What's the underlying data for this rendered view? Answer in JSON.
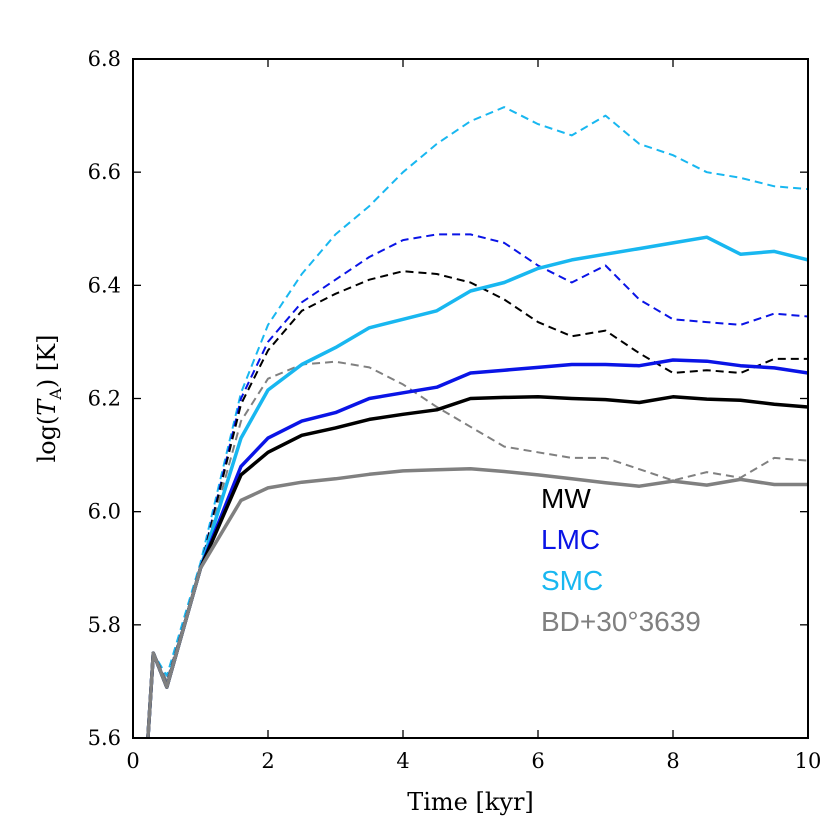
{
  "chart_data": {
    "type": "line",
    "xlabel": "Time [kyr]",
    "ylabel": "log(T_A) [K]",
    "ylabel_parts": {
      "pre": "log(",
      "var": "T",
      "sub": "A",
      "post": ") [K]"
    },
    "xlim": [
      0,
      10
    ],
    "ylim": [
      5.6,
      6.8
    ],
    "xticks": [
      0,
      2,
      4,
      6,
      8,
      10
    ],
    "yticks": [
      5.6,
      5.8,
      6.0,
      6.2,
      6.4,
      6.6,
      6.8
    ],
    "xtick_labels": [
      "0",
      "2",
      "4",
      "6",
      "8",
      "10"
    ],
    "ytick_labels": [
      "5.6",
      "5.8",
      "6.0",
      "6.2",
      "6.4",
      "6.6",
      "6.8"
    ],
    "grid": false,
    "legend": {
      "placement": "lower-right",
      "entries": [
        {
          "label": "MW",
          "color": "#000000"
        },
        {
          "label": "LMC",
          "color": "#0a14e6"
        },
        {
          "label": "SMC",
          "color": "#18b7f0"
        },
        {
          "label": "BD+30°3639",
          "color": "#808080"
        }
      ]
    },
    "series": [
      {
        "name": "SMC dashed",
        "color": "#18b7f0",
        "style": "dashed",
        "x": [
          0.2,
          0.3,
          0.5,
          1.0,
          1.6,
          2.0,
          2.5,
          3.0,
          3.5,
          4.0,
          4.5,
          5.0,
          5.5,
          6.0,
          6.5,
          7.0,
          7.5,
          8.0,
          8.5,
          9.0,
          9.5,
          10.0
        ],
        "y": [
          5.56,
          5.75,
          5.71,
          5.91,
          6.21,
          6.33,
          6.42,
          6.49,
          6.54,
          6.6,
          6.65,
          6.69,
          6.715,
          6.685,
          6.665,
          6.7,
          6.65,
          6.63,
          6.6,
          6.59,
          6.575,
          6.57
        ]
      },
      {
        "name": "LMC dashed",
        "color": "#0a14e6",
        "style": "dashed",
        "x": [
          0.2,
          0.3,
          0.5,
          1.0,
          1.6,
          2.0,
          2.5,
          3.0,
          3.5,
          4.0,
          4.5,
          5.0,
          5.5,
          6.0,
          6.5,
          7.0,
          7.5,
          8.0,
          8.5,
          9.0,
          9.5,
          10.0
        ],
        "y": [
          5.56,
          5.75,
          5.7,
          5.9,
          6.2,
          6.3,
          6.37,
          6.41,
          6.45,
          6.48,
          6.49,
          6.49,
          6.475,
          6.435,
          6.405,
          6.435,
          6.375,
          6.34,
          6.335,
          6.33,
          6.35,
          6.345
        ]
      },
      {
        "name": "MW dashed",
        "color": "#000000",
        "style": "dashed",
        "x": [
          0.2,
          0.3,
          0.5,
          1.0,
          1.6,
          2.0,
          2.5,
          3.0,
          3.5,
          4.0,
          4.5,
          5.0,
          5.5,
          6.0,
          6.5,
          7.0,
          7.5,
          8.0,
          8.5,
          9.0,
          9.5,
          10.0
        ],
        "y": [
          5.56,
          5.75,
          5.7,
          5.9,
          6.19,
          6.285,
          6.355,
          6.385,
          6.41,
          6.425,
          6.42,
          6.405,
          6.375,
          6.335,
          6.31,
          6.32,
          6.28,
          6.245,
          6.25,
          6.245,
          6.27,
          6.27
        ]
      },
      {
        "name": "BD+30°3639 dashed",
        "color": "#808080",
        "style": "dashed",
        "x": [
          0.2,
          0.3,
          0.5,
          1.0,
          1.6,
          2.0,
          2.5,
          3.0,
          3.5,
          4.0,
          4.5,
          5.0,
          5.5,
          6.0,
          6.5,
          7.0,
          7.5,
          8.0,
          8.5,
          9.0,
          9.5,
          10.0
        ],
        "y": [
          5.56,
          5.75,
          5.7,
          5.9,
          6.16,
          6.235,
          6.26,
          6.265,
          6.255,
          6.225,
          6.185,
          6.15,
          6.115,
          6.105,
          6.095,
          6.095,
          6.075,
          6.055,
          6.07,
          6.06,
          6.095,
          6.09
        ]
      },
      {
        "name": "SMC",
        "color": "#18b7f0",
        "style": "solid",
        "x": [
          0.2,
          0.3,
          0.5,
          1.0,
          1.6,
          2.0,
          2.5,
          3.0,
          3.5,
          4.0,
          4.5,
          5.0,
          5.5,
          6.0,
          6.5,
          7.0,
          7.5,
          8.0,
          8.5,
          9.0,
          9.5,
          10.0
        ],
        "y": [
          5.56,
          5.75,
          5.69,
          5.9,
          6.13,
          6.215,
          6.26,
          6.29,
          6.325,
          6.34,
          6.355,
          6.39,
          6.405,
          6.43,
          6.445,
          6.455,
          6.465,
          6.475,
          6.485,
          6.455,
          6.46,
          6.445
        ]
      },
      {
        "name": "LMC",
        "color": "#0a14e6",
        "style": "solid",
        "x": [
          0.2,
          0.3,
          0.5,
          1.0,
          1.6,
          2.0,
          2.5,
          3.0,
          3.5,
          4.0,
          4.5,
          5.0,
          5.5,
          6.0,
          6.5,
          7.0,
          7.5,
          8.0,
          8.5,
          9.0,
          9.5,
          10.0
        ],
        "y": [
          5.56,
          5.75,
          5.69,
          5.9,
          6.08,
          6.13,
          6.16,
          6.175,
          6.2,
          6.21,
          6.22,
          6.245,
          6.25,
          6.255,
          6.26,
          6.26,
          6.258,
          6.268,
          6.266,
          6.258,
          6.254,
          6.245
        ]
      },
      {
        "name": "MW",
        "color": "#000000",
        "style": "solid",
        "x": [
          0.2,
          0.3,
          0.5,
          1.0,
          1.6,
          2.0,
          2.5,
          3.0,
          3.5,
          4.0,
          4.5,
          5.0,
          5.5,
          6.0,
          6.5,
          7.0,
          7.5,
          8.0,
          8.5,
          9.0,
          9.5,
          10.0
        ],
        "y": [
          5.56,
          5.75,
          5.69,
          5.9,
          6.065,
          6.105,
          6.135,
          6.148,
          6.163,
          6.172,
          6.18,
          6.2,
          6.202,
          6.203,
          6.2,
          6.198,
          6.193,
          6.203,
          6.199,
          6.197,
          6.19,
          6.185
        ]
      },
      {
        "name": "BD+30°3639",
        "color": "#808080",
        "style": "solid",
        "x": [
          0.2,
          0.3,
          0.5,
          1.0,
          1.6,
          2.0,
          2.5,
          3.0,
          3.5,
          4.0,
          4.5,
          5.0,
          5.5,
          6.0,
          6.5,
          7.0,
          7.5,
          8.0,
          8.5,
          9.0,
          9.5,
          10.0
        ],
        "y": [
          5.56,
          5.75,
          5.69,
          5.9,
          6.02,
          6.042,
          6.052,
          6.058,
          6.066,
          6.072,
          6.074,
          6.076,
          6.071,
          6.065,
          6.058,
          6.051,
          6.045,
          6.054,
          6.047,
          6.057,
          6.048,
          6.048
        ]
      }
    ]
  }
}
